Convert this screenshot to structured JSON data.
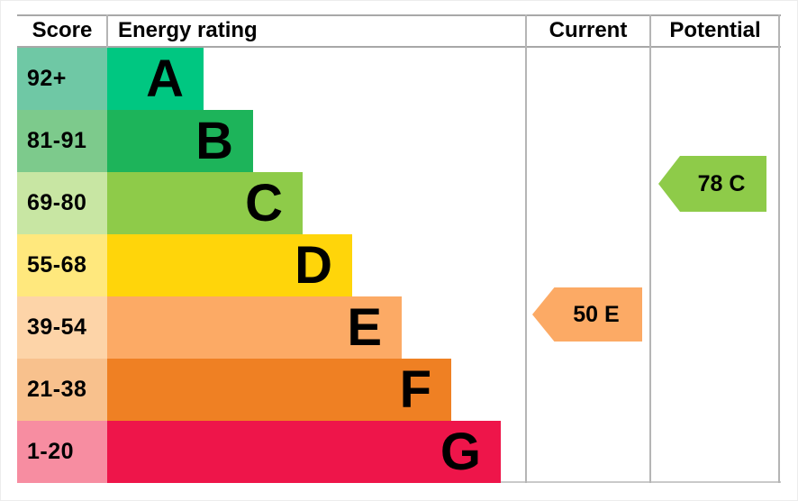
{
  "header": {
    "score": "Score",
    "energy_rating": "Energy rating",
    "current": "Current",
    "potential": "Potential"
  },
  "chart_data": {
    "type": "bar",
    "orientation": "horizontal",
    "description": "EPC energy efficiency rating chart with stepped bands A-G and current/potential rating arrows",
    "columns": [
      "Score",
      "Energy rating",
      "Current",
      "Potential"
    ],
    "bands": [
      {
        "letter": "A",
        "score_range": "92+",
        "bar_color": "#00c781",
        "score_cell_color": "#6fc8a5"
      },
      {
        "letter": "B",
        "score_range": "81-91",
        "bar_color": "#1db45a",
        "score_cell_color": "#7dca8c"
      },
      {
        "letter": "C",
        "score_range": "69-80",
        "bar_color": "#8ecb49",
        "score_cell_color": "#c8e6a3"
      },
      {
        "letter": "D",
        "score_range": "55-68",
        "bar_color": "#ffd50a",
        "score_cell_color": "#ffe87d"
      },
      {
        "letter": "E",
        "score_range": "39-54",
        "bar_color": "#fcaa65",
        "score_cell_color": "#fdd4a8"
      },
      {
        "letter": "F",
        "score_range": "21-38",
        "bar_color": "#ef8023",
        "score_cell_color": "#f8c18d"
      },
      {
        "letter": "G",
        "score_range": "1-20",
        "bar_color": "#ee154a",
        "score_cell_color": "#f78da1"
      }
    ],
    "current": {
      "value": 50,
      "band": "E",
      "label": "50 E",
      "color": "#fcaa65"
    },
    "potential": {
      "value": 78,
      "band": "C",
      "label": "78 C",
      "color": "#8ecb49"
    },
    "grid_color": "#a8a8a8",
    "text_color": "#000000"
  }
}
